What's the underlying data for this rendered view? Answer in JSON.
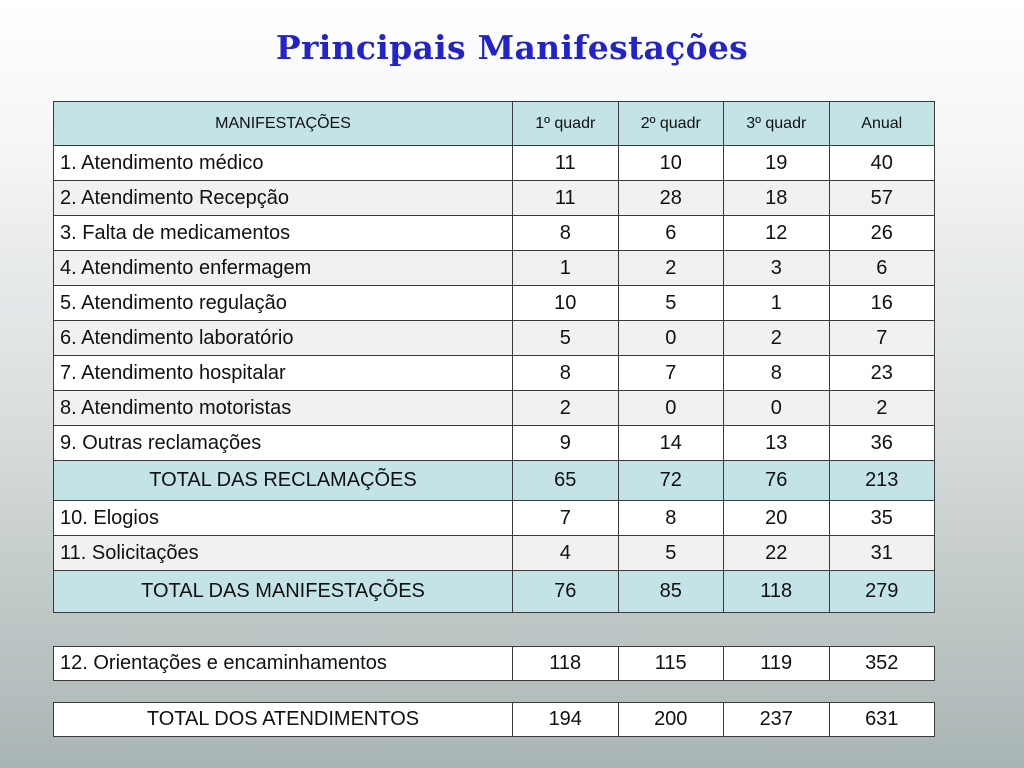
{
  "title": "Principais Manifestações",
  "headers": [
    "MANIFESTAÇÕES",
    "1º quadr",
    "2º quadr",
    "3º quadr",
    "Anual"
  ],
  "rows": [
    [
      "1. Atendimento médico",
      "11",
      "10",
      "19",
      "40"
    ],
    [
      "2. Atendimento Recepção",
      "11",
      "28",
      "18",
      "57"
    ],
    [
      "3. Falta de medicamentos",
      "8",
      "6",
      "12",
      "26"
    ],
    [
      "4. Atendimento enfermagem",
      "1",
      "2",
      "3",
      "6"
    ],
    [
      "5. Atendimento regulação",
      "10",
      "5",
      "1",
      "16"
    ],
    [
      "6. Atendimento laboratório",
      "5",
      "0",
      "2",
      "7"
    ],
    [
      "7. Atendimento hospitalar",
      "8",
      "7",
      "8",
      "23"
    ],
    [
      "8. Atendimento motoristas",
      "2",
      "0",
      "0",
      "2"
    ],
    [
      "9. Outras reclamações",
      "9",
      "14",
      "13",
      "36"
    ]
  ],
  "total_reclamacoes": [
    "TOTAL DAS RECLAMAÇÕES",
    "65",
    "72",
    "76",
    "213"
  ],
  "rows2": [
    [
      "10. Elogios",
      "7",
      "8",
      "20",
      "35"
    ],
    [
      "11. Solicitações",
      "4",
      "5",
      "22",
      "31"
    ]
  ],
  "total_manifestacoes": [
    "TOTAL DAS MANIFESTAÇÕES",
    "76",
    "85",
    "118",
    "279"
  ],
  "orientacoes": [
    "12. Orientações e encaminhamentos",
    "118",
    "115",
    "119",
    "352"
  ],
  "total_atendimentos": [
    "TOTAL DOS ATENDIMENTOS",
    "194",
    "200",
    "237",
    "631"
  ]
}
